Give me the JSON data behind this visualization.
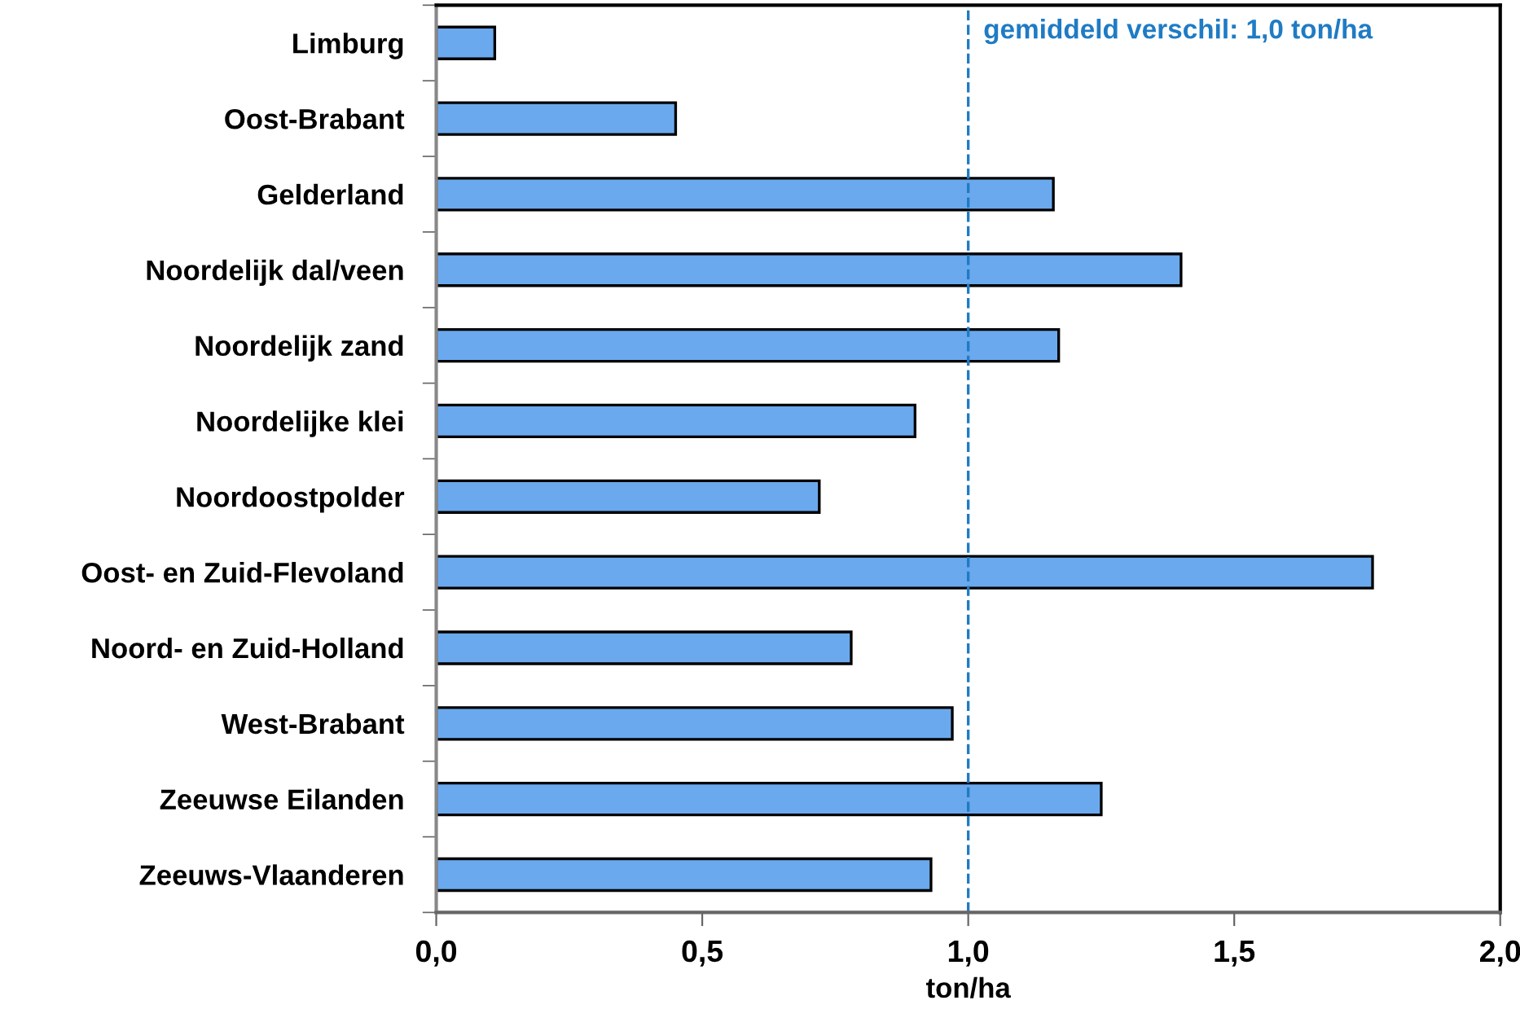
{
  "chart_data": {
    "type": "bar",
    "orientation": "horizontal",
    "xlabel": "ton/ha",
    "categories": [
      "Limburg",
      "Oost-Brabant",
      "Gelderland",
      "Noordelijk dal/veen",
      "Noordelijk zand",
      "Noordelijke klei",
      "Noordoostpolder",
      "Oost- en Zuid-Flevoland",
      "Noord- en Zuid-Holland",
      "West-Brabant",
      "Zeeuwse Eilanden",
      "Zeeuws-Vlaanderen"
    ],
    "values": [
      0.11,
      0.45,
      1.16,
      1.4,
      1.17,
      0.9,
      0.72,
      1.76,
      0.78,
      0.97,
      1.25,
      0.93
    ],
    "color": "#6aa9ee",
    "xlim": [
      0,
      2.0
    ],
    "xticks": [
      {
        "value": 0,
        "label": "0,0"
      },
      {
        "value": 0.5,
        "label": "0,5"
      },
      {
        "value": 1.0,
        "label": "1,0"
      },
      {
        "value": 1.5,
        "label": "1,5"
      },
      {
        "value": 2.0,
        "label": "2,0"
      }
    ],
    "ref_lines": [
      {
        "axis": "x",
        "value": 1.0,
        "label": "gemiddeld verschil: 1,0 ton/ha",
        "color": "#1f7bc4",
        "line_style": "dashed"
      }
    ],
    "grid": false,
    "legend": false
  }
}
